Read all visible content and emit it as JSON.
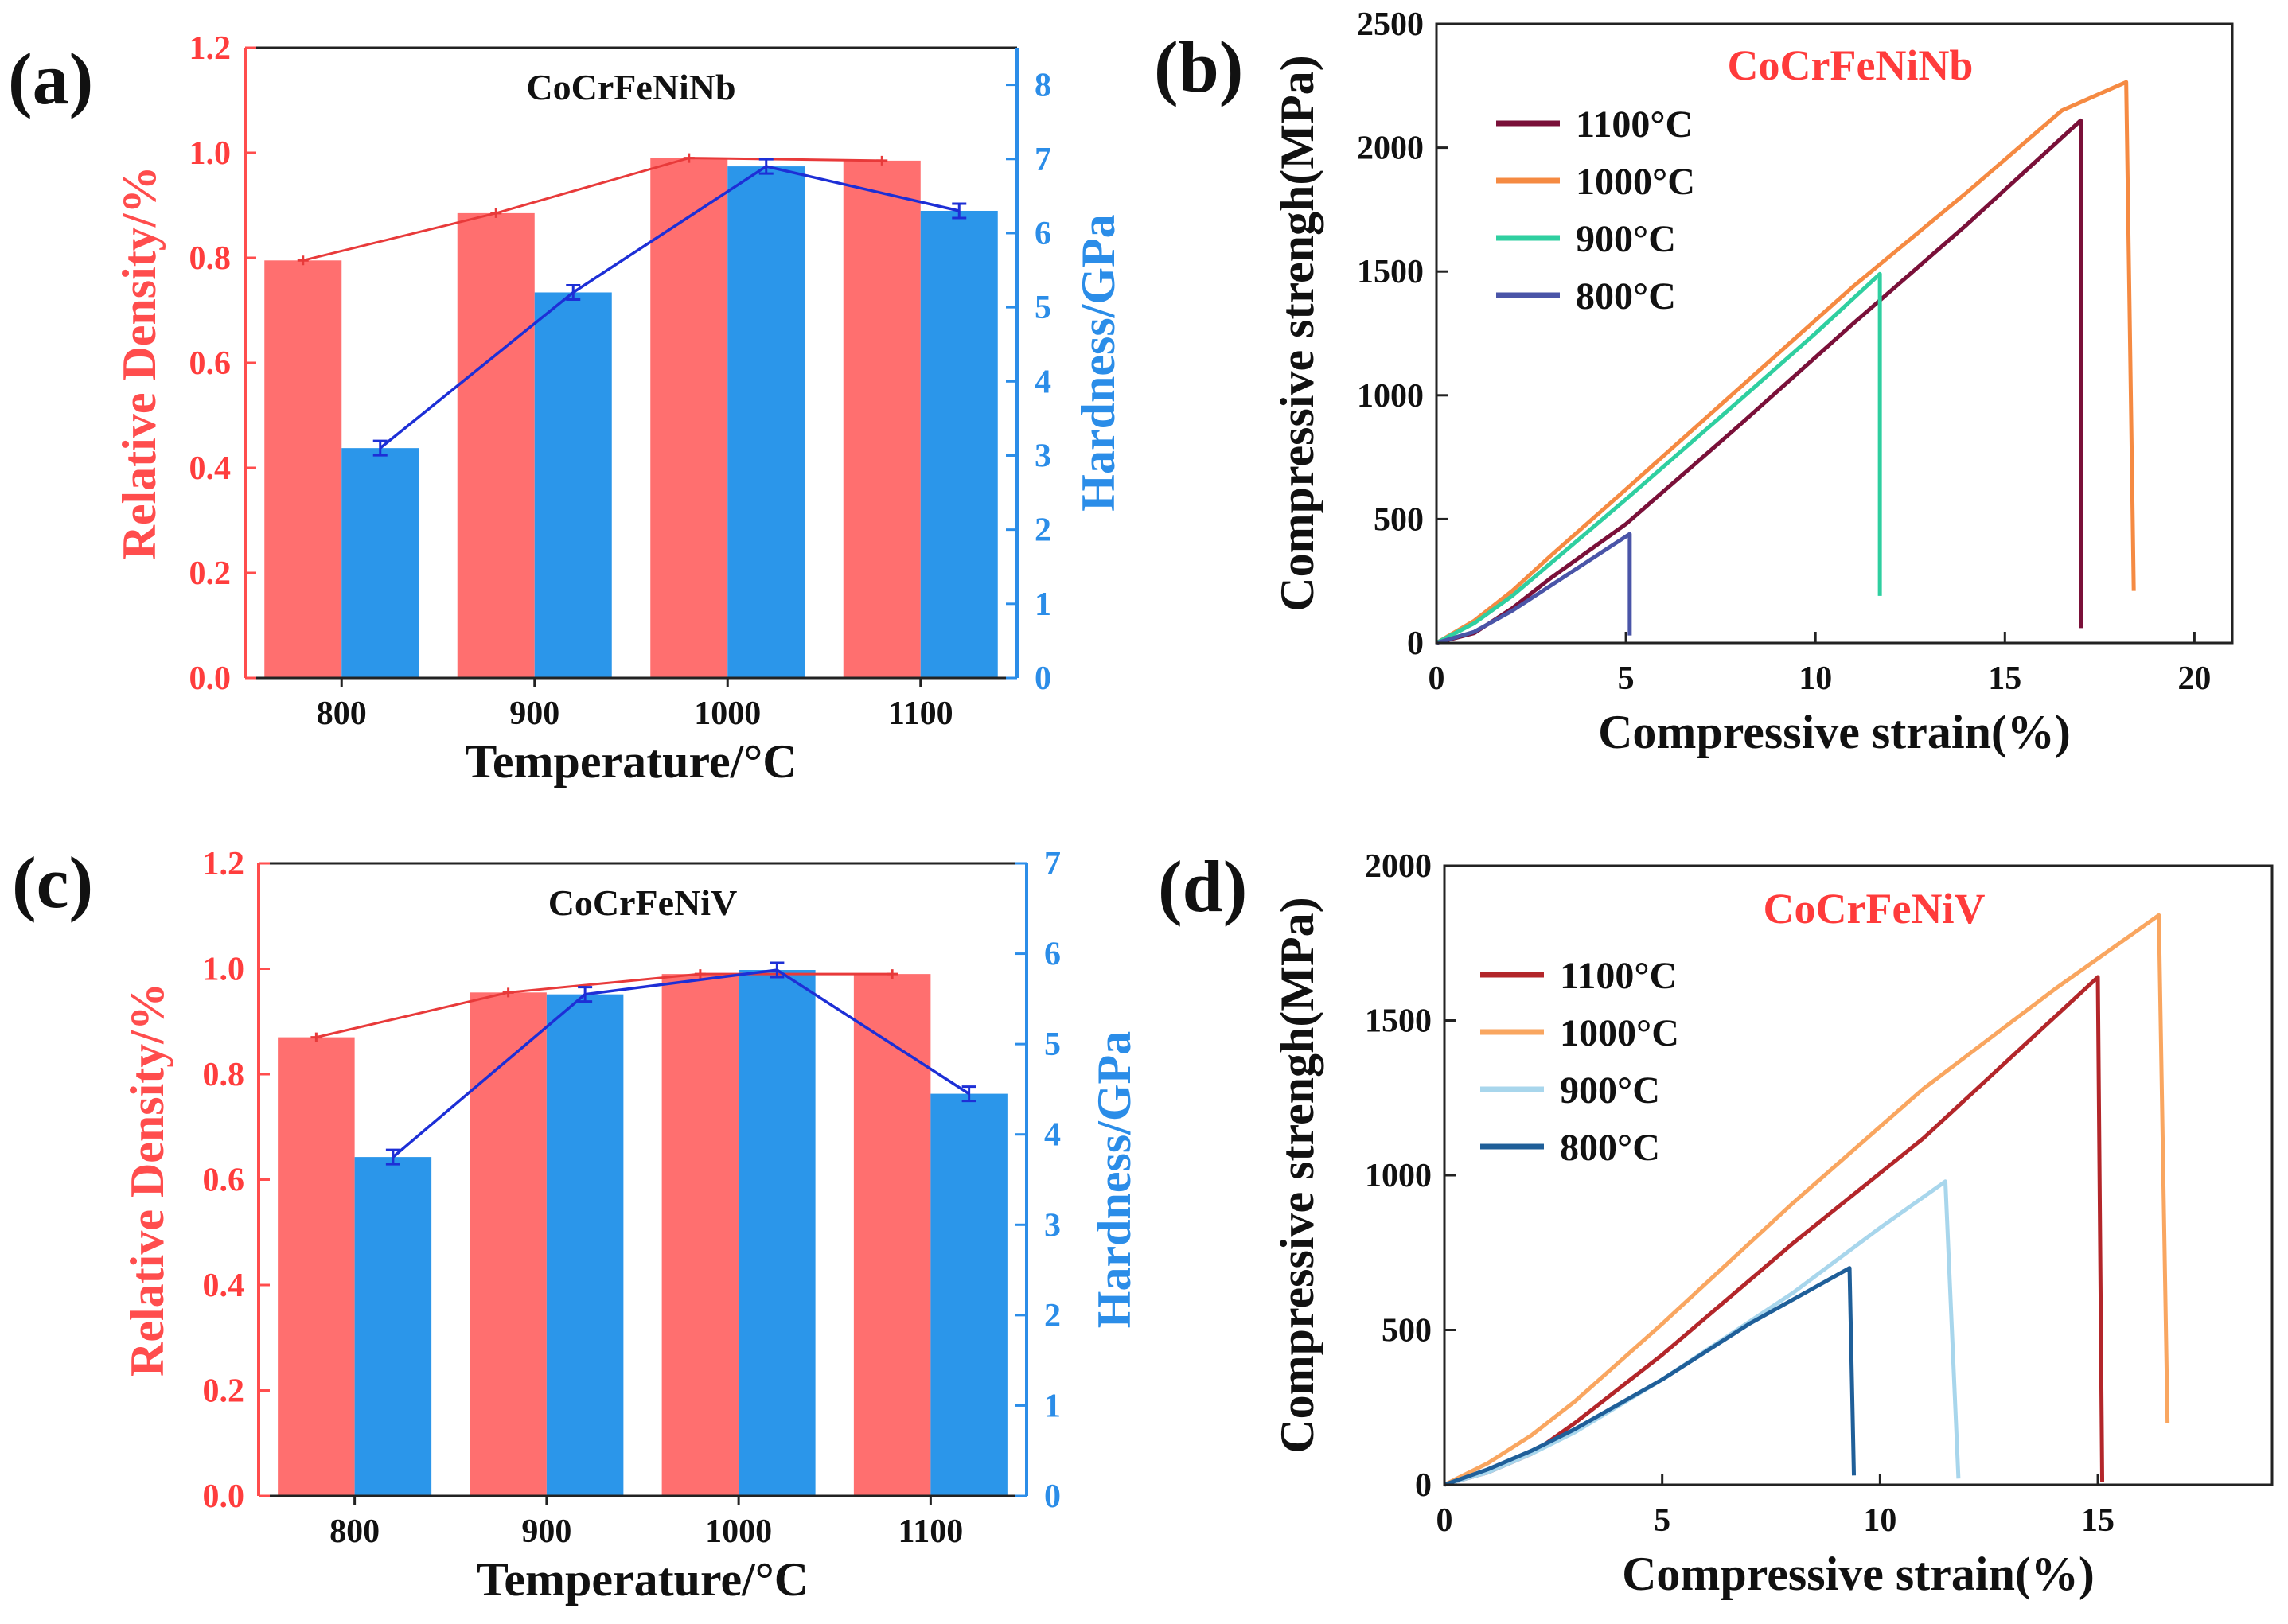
{
  "chart_data": [
    {
      "panel": "(a)",
      "type": "bar",
      "title": "CoCrFeNiNb",
      "categories": [
        "800",
        "900",
        "1000",
        "1100"
      ],
      "xlabel": "Temperature/°C",
      "ylabel_left": "Relative Density/%",
      "ylabel_right": "Hardness/GPa",
      "ylim_left": [
        0,
        1.2
      ],
      "ylim_right": [
        0,
        8.5
      ],
      "yticks_left": [
        "0.0",
        "0.2",
        "0.4",
        "0.6",
        "0.8",
        "1.0",
        "1.2"
      ],
      "yticks_right": [
        "0",
        "1",
        "2",
        "3",
        "4",
        "5",
        "6",
        "7",
        "8"
      ],
      "series": [
        {
          "name": "Relative Density",
          "axis": "left",
          "color": "#ff6f6f",
          "values": [
            0.795,
            0.885,
            0.99,
            0.985
          ]
        },
        {
          "name": "Hardness",
          "axis": "right",
          "color": "#2b96ea",
          "values": [
            3.1,
            5.2,
            6.9,
            6.3
          ]
        }
      ]
    },
    {
      "panel": "(b)",
      "type": "line",
      "title": "CoCrFeNiNb",
      "xlabel": "Compressive strain(%)",
      "ylabel": "Compressive strengh(MPa)",
      "xlim": [
        0,
        21
      ],
      "ylim": [
        0,
        2500
      ],
      "xticks": [
        "0",
        "5",
        "10",
        "15",
        "20"
      ],
      "yticks": [
        "0",
        "500",
        "1000",
        "1500",
        "2000",
        "2500"
      ],
      "series": [
        {
          "name": "1100°C",
          "color": "#7a1039",
          "points": [
            [
              0,
              0
            ],
            [
              1,
              40
            ],
            [
              2,
              140
            ],
            [
              3,
              260
            ],
            [
              5,
              480
            ],
            [
              8,
              880
            ],
            [
              11,
              1290
            ],
            [
              14,
              1690
            ],
            [
              17,
              2110
            ],
            [
              17,
              60
            ]
          ]
        },
        {
          "name": "1000°C",
          "color": "#f58a42",
          "points": [
            [
              0,
              0
            ],
            [
              1,
              90
            ],
            [
              2,
              210
            ],
            [
              3,
              350
            ],
            [
              5,
              620
            ],
            [
              8,
              1030
            ],
            [
              11,
              1440
            ],
            [
              14,
              1820
            ],
            [
              16.5,
              2150
            ],
            [
              18.2,
              2265
            ],
            [
              18.4,
              210
            ]
          ]
        },
        {
          "name": "900°C",
          "color": "#2fcfa0",
          "points": [
            [
              0,
              0
            ],
            [
              1,
              80
            ],
            [
              2,
              190
            ],
            [
              3,
              320
            ],
            [
              5,
              580
            ],
            [
              8,
              980
            ],
            [
              10,
              1250
            ],
            [
              11.7,
              1490
            ],
            [
              11.7,
              190
            ]
          ]
        },
        {
          "name": "800°C",
          "color": "#4a55a8",
          "points": [
            [
              0,
              0
            ],
            [
              1,
              45
            ],
            [
              2,
              130
            ],
            [
              3,
              230
            ],
            [
              4,
              330
            ],
            [
              5.1,
              440
            ],
            [
              5.1,
              30
            ]
          ]
        }
      ]
    },
    {
      "panel": "(c)",
      "type": "bar",
      "title": "CoCrFeNiV",
      "categories": [
        "800",
        "900",
        "1000",
        "1100"
      ],
      "xlabel": "Temperature/°C",
      "ylabel_left": "Relative Density/%",
      "ylabel_right": "Hardness/GPa",
      "ylim_left": [
        0,
        1.2
      ],
      "ylim_right": [
        0,
        7
      ],
      "yticks_left": [
        "0.0",
        "0.2",
        "0.4",
        "0.6",
        "0.8",
        "1.0",
        "1.2"
      ],
      "yticks_right": [
        "0",
        "1",
        "2",
        "3",
        "4",
        "5",
        "6",
        "7"
      ],
      "series": [
        {
          "name": "Relative Density",
          "axis": "left",
          "color": "#ff6f6f",
          "values": [
            0.87,
            0.955,
            0.99,
            0.99
          ]
        },
        {
          "name": "Hardness",
          "axis": "right",
          "color": "#2b96ea",
          "values": [
            3.75,
            5.55,
            5.82,
            4.45
          ]
        }
      ]
    },
    {
      "panel": "(d)",
      "type": "line",
      "title": "CoCrFeNiV",
      "xlabel": "Compressive strain(%)",
      "ylabel": "Compressive strengh(MPa)",
      "xlim": [
        0,
        19
      ],
      "ylim": [
        0,
        2000
      ],
      "xticks": [
        "0",
        "5",
        "10",
        "15"
      ],
      "yticks": [
        "0",
        "500",
        "1000",
        "1500",
        "2000"
      ],
      "series": [
        {
          "name": "1100°C",
          "color": "#b3262a",
          "points": [
            [
              0,
              0
            ],
            [
              1,
              40
            ],
            [
              2,
              100
            ],
            [
              3,
              200
            ],
            [
              5,
              420
            ],
            [
              8,
              780
            ],
            [
              11,
              1120
            ],
            [
              13,
              1380
            ],
            [
              15,
              1640
            ],
            [
              15.1,
              10
            ]
          ]
        },
        {
          "name": "1000°C",
          "color": "#f9a660",
          "points": [
            [
              0,
              0
            ],
            [
              1,
              70
            ],
            [
              2,
              160
            ],
            [
              3,
              270
            ],
            [
              5,
              520
            ],
            [
              8,
              910
            ],
            [
              11,
              1280
            ],
            [
              14,
              1600
            ],
            [
              16.4,
              1840
            ],
            [
              16.6,
              200
            ]
          ]
        },
        {
          "name": "900°C",
          "color": "#a8d6ec",
          "points": [
            [
              0,
              0
            ],
            [
              1,
              40
            ],
            [
              2,
              100
            ],
            [
              3,
              170
            ],
            [
              5,
              340
            ],
            [
              8,
              620
            ],
            [
              10,
              830
            ],
            [
              11.5,
              980
            ],
            [
              11.8,
              20
            ]
          ]
        },
        {
          "name": "800°C",
          "color": "#1f5f99",
          "points": [
            [
              0,
              0
            ],
            [
              1,
              50
            ],
            [
              2,
              110
            ],
            [
              3,
              180
            ],
            [
              5,
              340
            ],
            [
              7,
              520
            ],
            [
              9.3,
              700
            ],
            [
              9.4,
              30
            ]
          ]
        }
      ]
    }
  ]
}
